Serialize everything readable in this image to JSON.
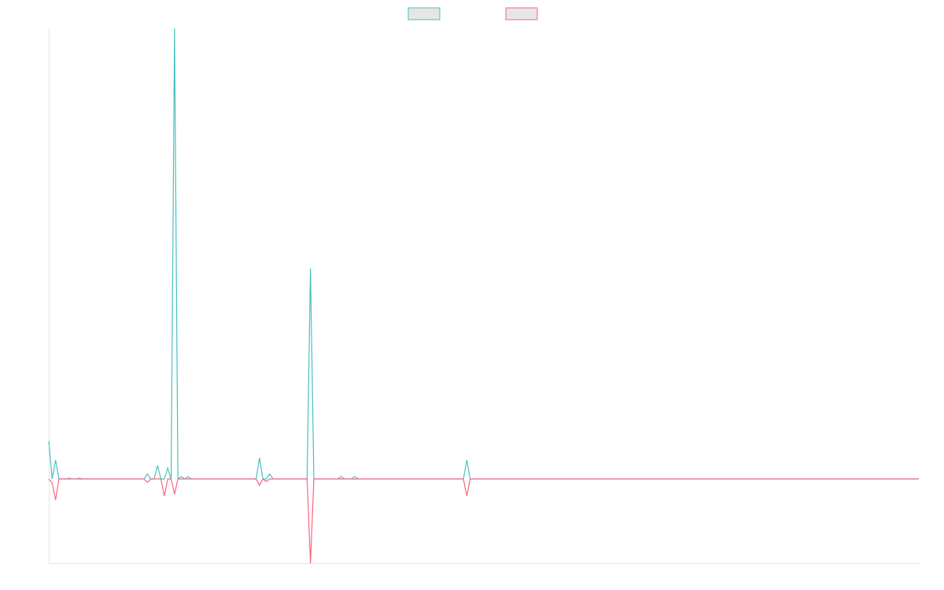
{
  "chart_data": {
    "type": "line",
    "legend": "top",
    "x": [
      0,
      1,
      2,
      3,
      5,
      6,
      7,
      8,
      9,
      10,
      28,
      29,
      30,
      31,
      32,
      33,
      34,
      35,
      36,
      37,
      38,
      39,
      40,
      41,
      42,
      61,
      62,
      63,
      64,
      65,
      66,
      76,
      77,
      78,
      85,
      86,
      87,
      89,
      90,
      91,
      122,
      123,
      124,
      256
    ],
    "xlim": [
      0,
      256
    ],
    "ylim": [
      -20,
      107
    ],
    "series": [
      {
        "color": "#4bc0c0",
        "values": [
          9,
          0,
          4.5,
          0,
          0,
          0.2,
          0,
          0,
          0.2,
          0,
          0,
          1.2,
          0,
          0,
          3.2,
          0,
          0,
          2.6,
          0,
          107,
          0,
          0.6,
          0,
          0.6,
          0,
          0,
          5,
          0,
          0,
          1.2,
          0,
          0,
          50,
          0,
          0,
          0.6,
          0,
          0,
          0.6,
          0,
          0,
          4.5,
          0,
          0
        ]
      },
      {
        "color": "#ff6384",
        "values": [
          0,
          -1,
          -5,
          0,
          0,
          0,
          0,
          0,
          0,
          0,
          0,
          -0.8,
          0,
          0,
          0,
          0,
          -4,
          0,
          0,
          -3.6,
          0,
          0,
          0,
          0,
          0,
          0,
          -1.5,
          0,
          -0.6,
          0,
          0,
          0,
          -20,
          0,
          0,
          0,
          0,
          0,
          0,
          0,
          0,
          -4,
          0,
          0
        ]
      }
    ]
  }
}
